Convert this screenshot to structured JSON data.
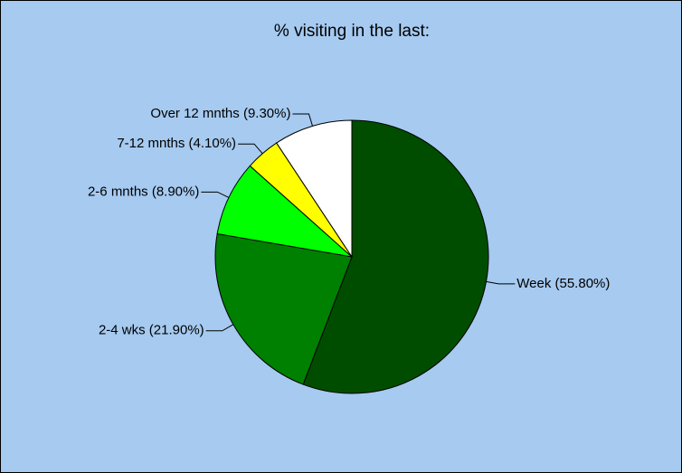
{
  "chart_data": {
    "type": "pie",
    "title": "% visiting in the last:",
    "values": [
      55.8,
      21.9,
      8.9,
      4.1,
      9.3
    ],
    "value_labels": [
      "Week (55.80%)",
      "2-4 wks (21.90%)",
      "2-6 mnths (8.90%)",
      "7-12 mnths (4.10%)",
      "Over 12 mnths (9.30%)"
    ],
    "colors": [
      "#004d00",
      "#008000",
      "#00ff00",
      "#ffff00",
      "#ffffff"
    ]
  }
}
